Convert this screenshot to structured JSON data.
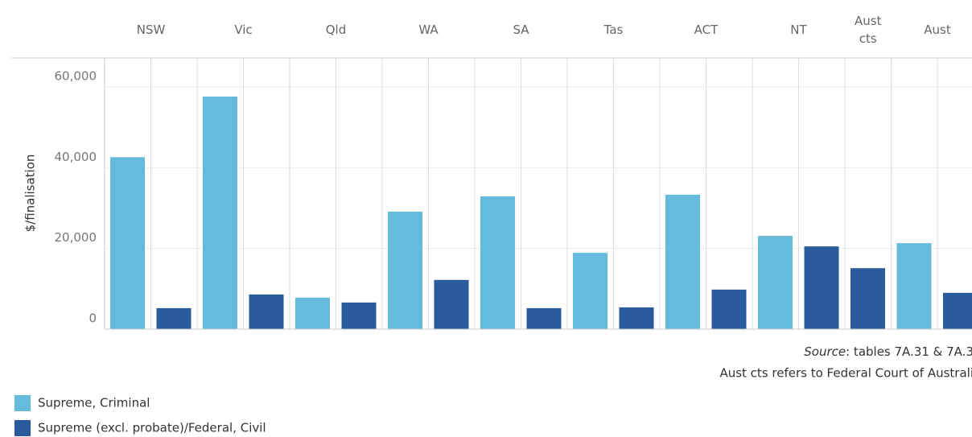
{
  "chart_data": {
    "type": "bar",
    "categories": [
      "NSW",
      "Vic",
      "Qld",
      "WA",
      "SA",
      "Tas",
      "ACT",
      "NT",
      "Aust cts",
      "Aust"
    ],
    "series": [
      {
        "name": "Supreme, Criminal",
        "color": "#64bbdb",
        "values": [
          42600,
          57600,
          7800,
          29100,
          32900,
          18900,
          33300,
          23100,
          null,
          21300
        ]
      },
      {
        "name": "Supreme (excl. probate)/Federal, Civil",
        "color": "#2a5b9c",
        "values": [
          5200,
          8600,
          6600,
          12200,
          5200,
          5400,
          9800,
          20500,
          15100,
          9000
        ]
      }
    ],
    "y_label": "$/finalisation",
    "ylim": [
      0,
      60000
    ],
    "yticks": [
      0,
      {
        "value": 20000,
        "label": "20,000"
      },
      {
        "value": 40000,
        "label": "40,000"
      },
      {
        "value": 60000,
        "label": "60,000"
      }
    ],
    "grid": true,
    "source_label": "Source",
    "source_text": ": tables 7A.31 & 7A.3",
    "note": "Aust cts refers to Federal Court of Australi",
    "legend": "bottom-left"
  }
}
